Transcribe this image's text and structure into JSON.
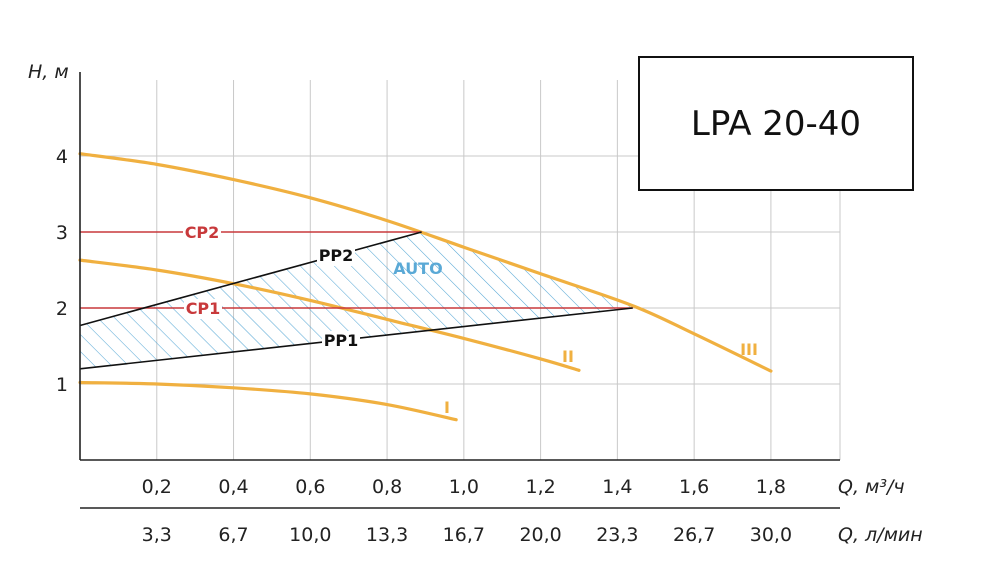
{
  "chart_data": {
    "type": "line",
    "title": "LPA 20-40",
    "ylabel": "H, м",
    "xlabel": "Q, м³/ч",
    "xlabel_secondary": "Q, л/мин",
    "xlim": [
      0,
      1.98
    ],
    "ylim": [
      0,
      5.0
    ],
    "x_ticks": [
      0.2,
      0.4,
      0.6,
      0.8,
      1.0,
      1.2,
      1.4,
      1.6,
      1.8
    ],
    "x_tick_labels": [
      "0,2",
      "0,4",
      "0,6",
      "0,8",
      "1,0",
      "1,2",
      "1,4",
      "1,6",
      "1,8"
    ],
    "x2_tick_labels": [
      "3,3",
      "6,7",
      "10,0",
      "13,3",
      "16,7",
      "20,0",
      "23,3",
      "26,7",
      "30,0"
    ],
    "y_ticks": [
      1,
      2,
      3,
      4
    ],
    "y_tick_labels": [
      "1",
      "2",
      "3",
      "4"
    ],
    "grid": true,
    "colors": {
      "speed": "#f0b040",
      "constant": "#c8393b",
      "proportional": "#111111",
      "auto": "#5aa9d6"
    },
    "series": [
      {
        "name": "I",
        "kind": "speed",
        "x": [
          0,
          0.2,
          0.4,
          0.6,
          0.8,
          0.98
        ],
        "y": [
          1.02,
          1.0,
          0.95,
          0.87,
          0.73,
          0.53
        ]
      },
      {
        "name": "II",
        "kind": "speed",
        "x": [
          0,
          0.2,
          0.4,
          0.6,
          0.8,
          1.0,
          1.2,
          1.3
        ],
        "y": [
          2.63,
          2.5,
          2.32,
          2.1,
          1.85,
          1.6,
          1.33,
          1.18
        ]
      },
      {
        "name": "III",
        "kind": "speed",
        "x": [
          0,
          0.2,
          0.4,
          0.6,
          0.8,
          1.0,
          1.2,
          1.44,
          1.6,
          1.8
        ],
        "y": [
          4.03,
          3.89,
          3.69,
          3.45,
          3.15,
          2.8,
          2.45,
          2.03,
          1.66,
          1.17
        ]
      },
      {
        "name": "CP2",
        "kind": "constant",
        "x": [
          0,
          0.89
        ],
        "y": [
          3.0,
          3.0
        ]
      },
      {
        "name": "CP1",
        "kind": "constant",
        "x": [
          0,
          1.44
        ],
        "y": [
          2.0,
          2.0
        ]
      },
      {
        "name": "PP2",
        "kind": "proportional",
        "x": [
          0,
          0.89
        ],
        "y": [
          1.77,
          3.0
        ]
      },
      {
        "name": "PP1",
        "kind": "proportional",
        "x": [
          0,
          1.44
        ],
        "y": [
          1.2,
          2.0
        ]
      }
    ],
    "region": {
      "name": "AUTO",
      "kind": "auto"
    },
    "labels": {
      "I": "I",
      "II": "II",
      "III": "III",
      "CP1": "CP1",
      "CP2": "CP2",
      "PP1": "PP1",
      "PP2": "PP2",
      "AUTO": "AUTO"
    }
  }
}
